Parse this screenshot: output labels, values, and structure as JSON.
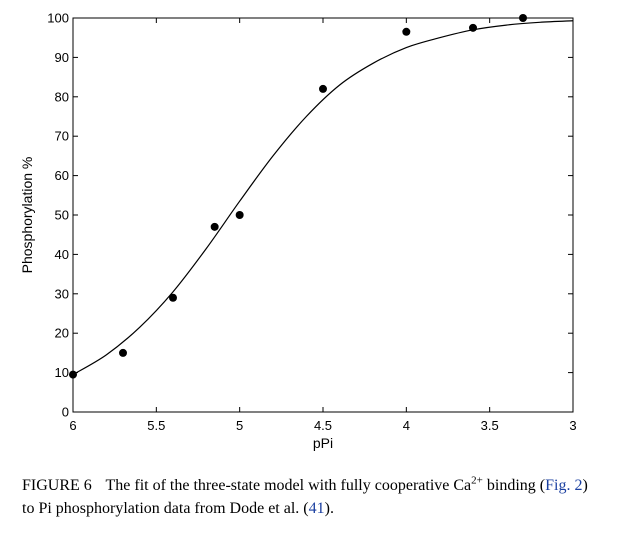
{
  "chart_data": {
    "type": "scatter",
    "xlabel": "pPi",
    "ylabel": "Phosphorylation %",
    "xlim": [
      6,
      3
    ],
    "ylim": [
      0,
      100
    ],
    "x_reversed": true,
    "xticks": [
      6,
      5.5,
      5,
      4.5,
      4,
      3.5,
      3
    ],
    "xtick_labels": [
      "6",
      "5.5",
      "5",
      "4.5",
      "4",
      "3.5",
      "3"
    ],
    "yticks": [
      0,
      10,
      20,
      30,
      40,
      50,
      60,
      70,
      80,
      90,
      100
    ],
    "ytick_labels": [
      "0",
      "10",
      "20",
      "30",
      "40",
      "50",
      "60",
      "70",
      "80",
      "90",
      "100"
    ],
    "grid": false,
    "series": [
      {
        "type": "scatter",
        "x": [
          6.0,
          5.7,
          5.4,
          5.15,
          5.0,
          4.5,
          4.0,
          3.6,
          3.3
        ],
        "y": [
          9.5,
          15,
          29,
          47,
          50,
          82,
          96.5,
          97.5,
          100
        ]
      },
      {
        "type": "line",
        "x": [
          6.0,
          5.8,
          5.6,
          5.4,
          5.2,
          5.0,
          4.8,
          4.6,
          4.4,
          4.2,
          4.0,
          3.8,
          3.6,
          3.4,
          3.2,
          3.0
        ],
        "y": [
          9.5,
          14.5,
          21.5,
          30.5,
          41.5,
          53.5,
          65,
          75,
          83,
          88.5,
          92.5,
          95,
          97,
          98.2,
          98.9,
          99.3
        ]
      }
    ]
  },
  "caption": {
    "figure_label": "FIGURE 6",
    "text_before_sup": "The fit of the three-state model with fully cooperative Ca",
    "superscript": "2+",
    "text_after_sup": " binding (",
    "fig_ref": "Fig. 2",
    "text_middle": ") to Pi phosphorylation data from Dode et al. (",
    "citation": "41",
    "text_end": ")."
  }
}
